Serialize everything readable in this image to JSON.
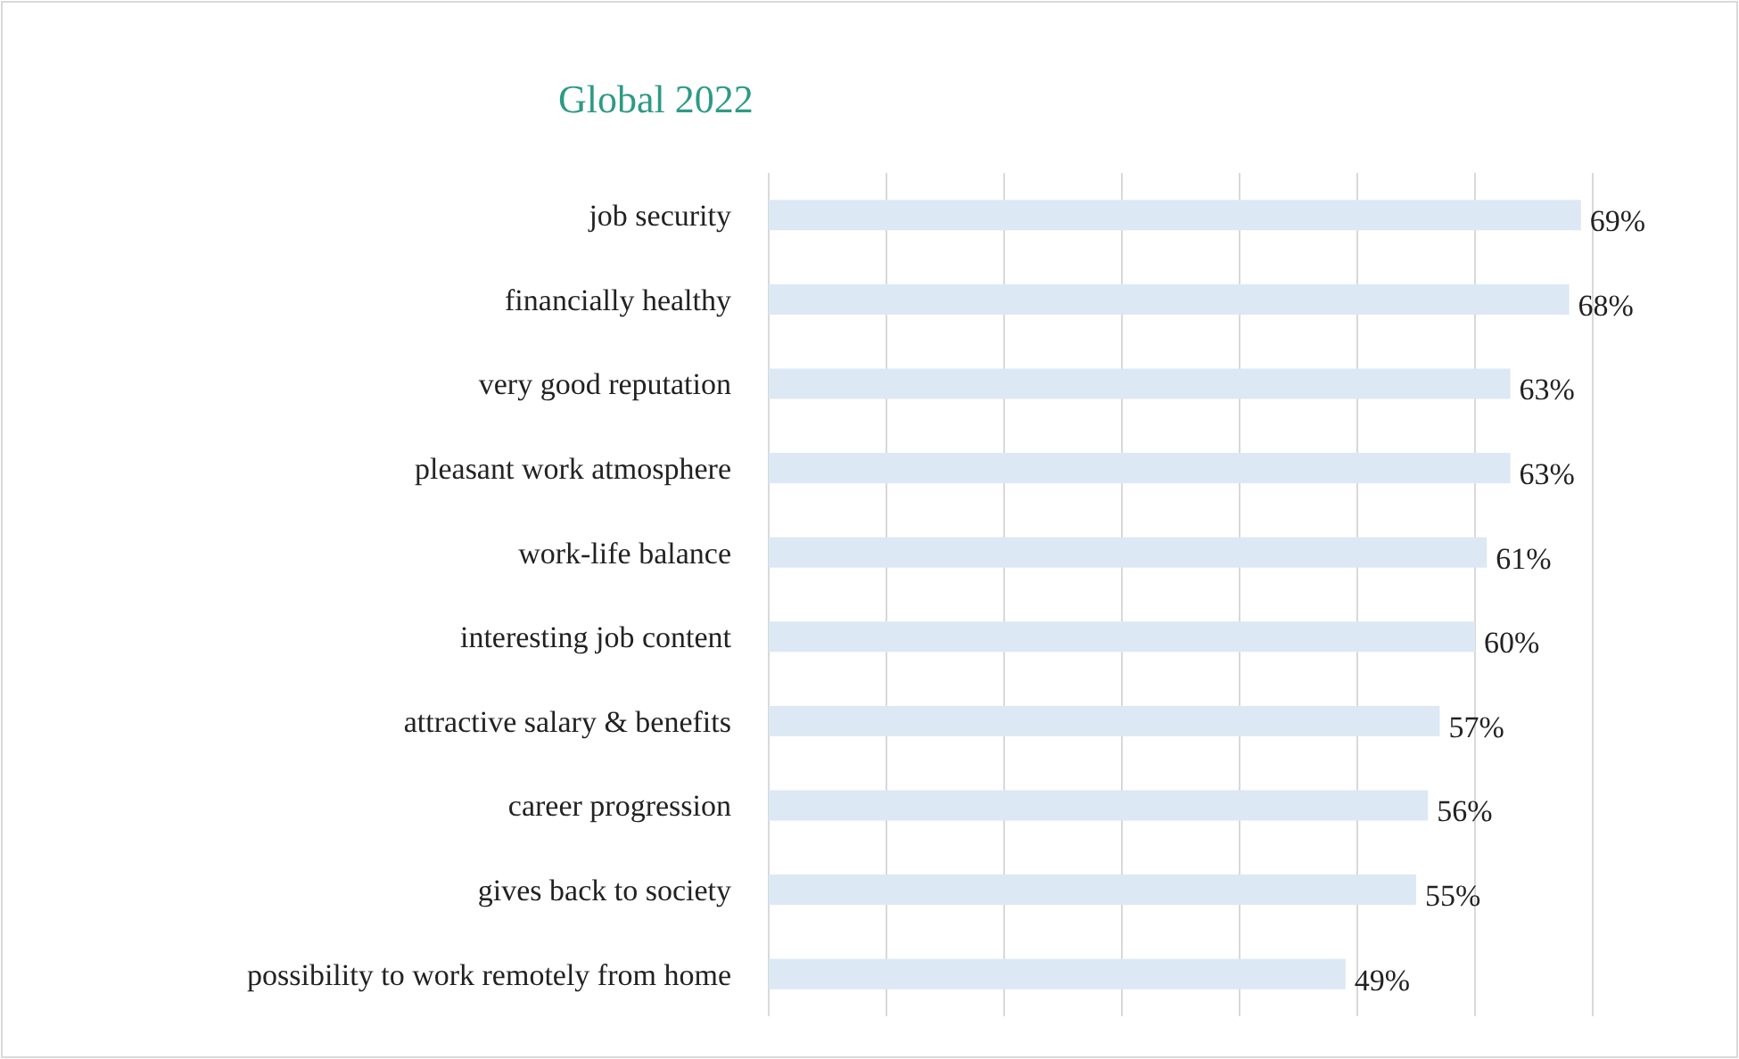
{
  "chart_data": {
    "type": "bar",
    "orientation": "horizontal",
    "title": "Global 2022",
    "categories": [
      "job security",
      "financially healthy",
      "very good reputation",
      "pleasant work atmosphere",
      "work-life balance",
      "interesting job content",
      "attractive salary & benefits",
      "career progression",
      "gives back to society",
      "possibility to work remotely from home"
    ],
    "values": [
      69,
      68,
      63,
      63,
      61,
      60,
      57,
      56,
      55,
      49
    ],
    "value_labels": [
      "69%",
      "68%",
      "63%",
      "63%",
      "61%",
      "60%",
      "57%",
      "56%",
      "55%",
      "49%"
    ],
    "color": "#dde8f5",
    "xlim": [
      0,
      70
    ],
    "xticks": [
      {
        "value": 0,
        "label": null
      },
      {
        "value": 10,
        "label": null
      },
      {
        "value": 20,
        "label": null
      },
      {
        "value": 30,
        "label": null
      },
      {
        "value": 40,
        "label": null
      },
      {
        "value": 50,
        "label": null
      },
      {
        "value": 60,
        "label": null
      },
      {
        "value": 70,
        "label": null
      }
    ],
    "grid": "x",
    "tick_labels": "y"
  }
}
